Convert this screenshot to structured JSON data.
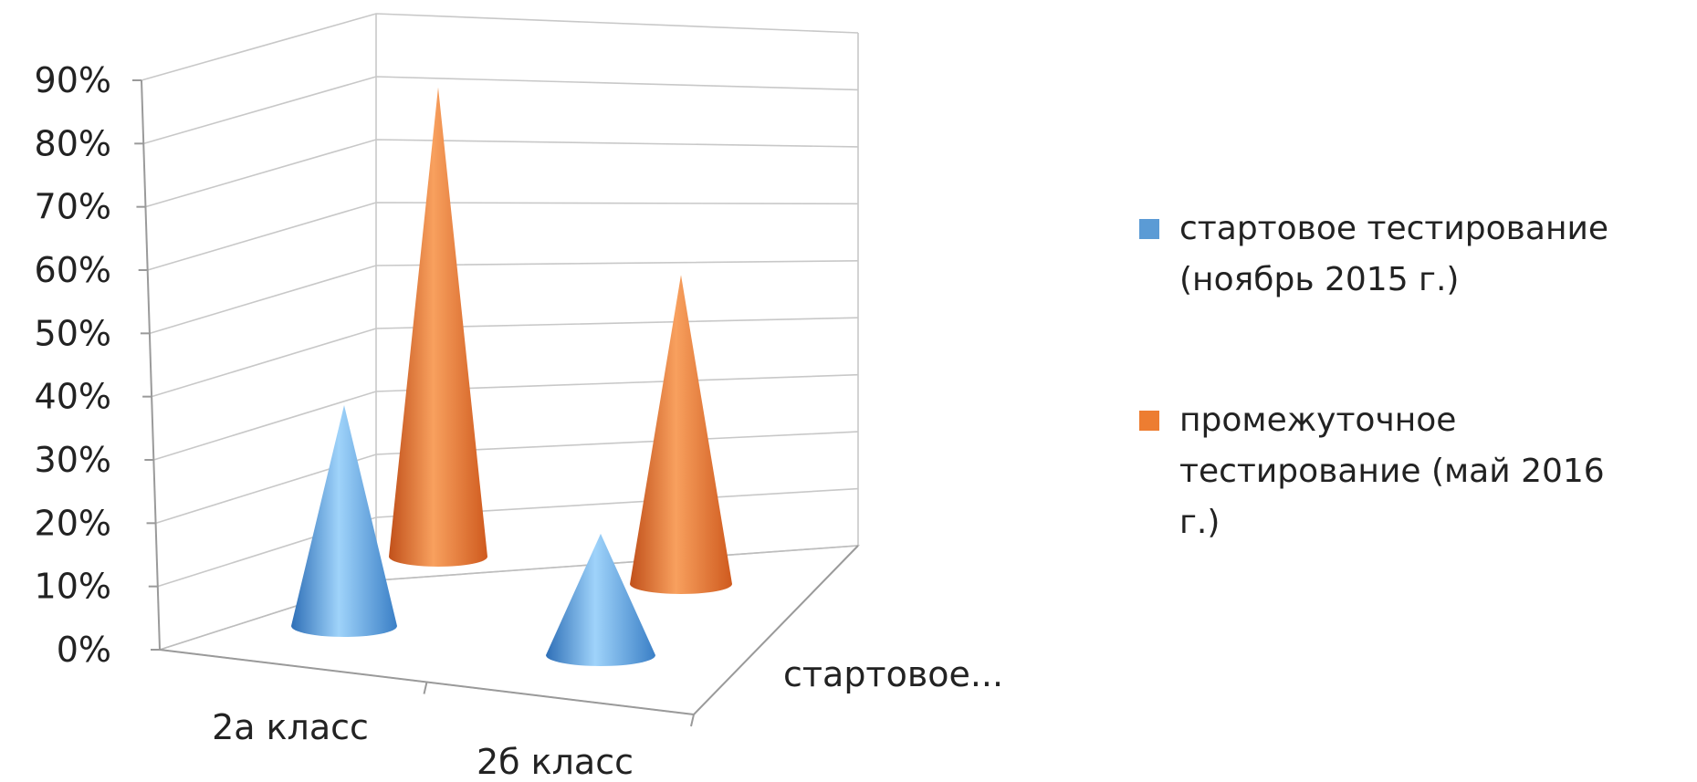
{
  "chart_data": {
    "type": "bar",
    "shape": "3d-cone",
    "title": "",
    "xlabel": "",
    "ylabel": "",
    "categories": [
      "2а класс",
      "2б класс"
    ],
    "depth_label": "стартовое...",
    "yticks": [
      "0%",
      "10%",
      "20%",
      "30%",
      "40%",
      "50%",
      "60%",
      "70%",
      "80%",
      "90%"
    ],
    "ylim": [
      0,
      90
    ],
    "grid": true,
    "legend_position": "right",
    "series": [
      {
        "name": "стартовое тестирование (ноябрь 2015 г.)",
        "legend_lines": [
          "стартовое тестирование",
          "(ноябрь 2015 г.)"
        ],
        "color": "#5B9BD5",
        "values": [
          40,
          22
        ]
      },
      {
        "name": "промежуточное тестирование (май 2016 г.)",
        "legend_lines": [
          "промежуточное",
          "тестирование (май 2016",
          "г.)"
        ],
        "color": "#ED7D31",
        "values": [
          85,
          56
        ]
      }
    ]
  }
}
